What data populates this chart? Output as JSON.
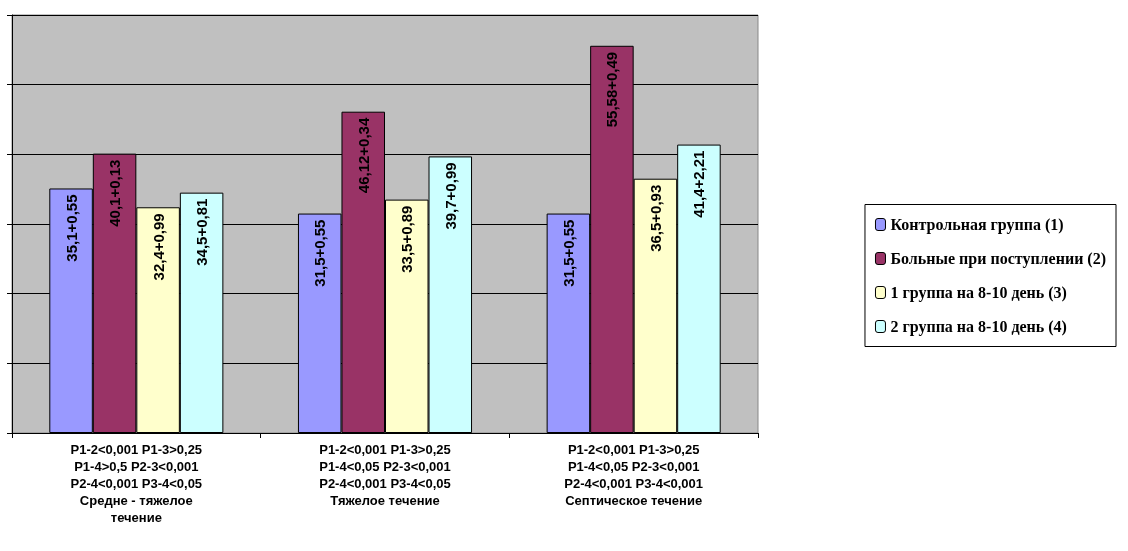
{
  "chart_data": {
    "type": "bar",
    "categories": [
      "P1-2<0,001 P1-3>0,25\nP1-4>0,5 P2-3<0,001\nP2-4<0,001 P3-4<0,05\nСредне - тяжелое\nтечение",
      "P1-2<0,001 P1-3>0,25\nP1-4<0,05 P2-3<0,001\nP2-4<0,001 P3-4<0,05\nТяжелое течение",
      "P1-2<0,001 P1-3>0,25\nP1-4<0,05 P2-3<0,001\nP2-4<0,001 P3-4<0,001\nСептическое течение"
    ],
    "series": [
      {
        "name": "Контрольная группа (1)",
        "color": "#9999ff",
        "values": [
          35.1,
          31.5,
          31.5
        ],
        "value_labels": [
          "35,1+0,55",
          "31,5+0,55",
          "31,5+0,55"
        ]
      },
      {
        "name": "Больные при поступлении (2)",
        "color": "#993366",
        "values": [
          40.1,
          46.12,
          55.58
        ],
        "value_labels": [
          "40,1+0,13",
          "46,12+0,34",
          "55,58+0,49"
        ]
      },
      {
        "name": "1 группа на 8-10 день (3)",
        "color": "#ffffcc",
        "values": [
          32.4,
          33.5,
          36.5
        ],
        "value_labels": [
          "32,4+0,99",
          "33,5+0,89",
          "36,5+0,93"
        ]
      },
      {
        "name": "2 группа на 8-10 день (4)",
        "color": "#ccffff",
        "values": [
          34.5,
          39.7,
          41.4
        ],
        "value_labels": [
          "34,5+0,81",
          "39,7+0,99",
          "41,4+2,21"
        ]
      }
    ],
    "ylim": [
      0,
      60
    ],
    "yticks": [
      {
        "value": 0,
        "label": null
      },
      {
        "value": 10,
        "label": null
      },
      {
        "value": 20,
        "label": null
      },
      {
        "value": 30,
        "label": null
      },
      {
        "value": 40,
        "label": null
      },
      {
        "value": 50,
        "label": null
      },
      {
        "value": 60,
        "label": null
      }
    ],
    "tick_labels": "x",
    "grid": "y",
    "legend": "right"
  }
}
